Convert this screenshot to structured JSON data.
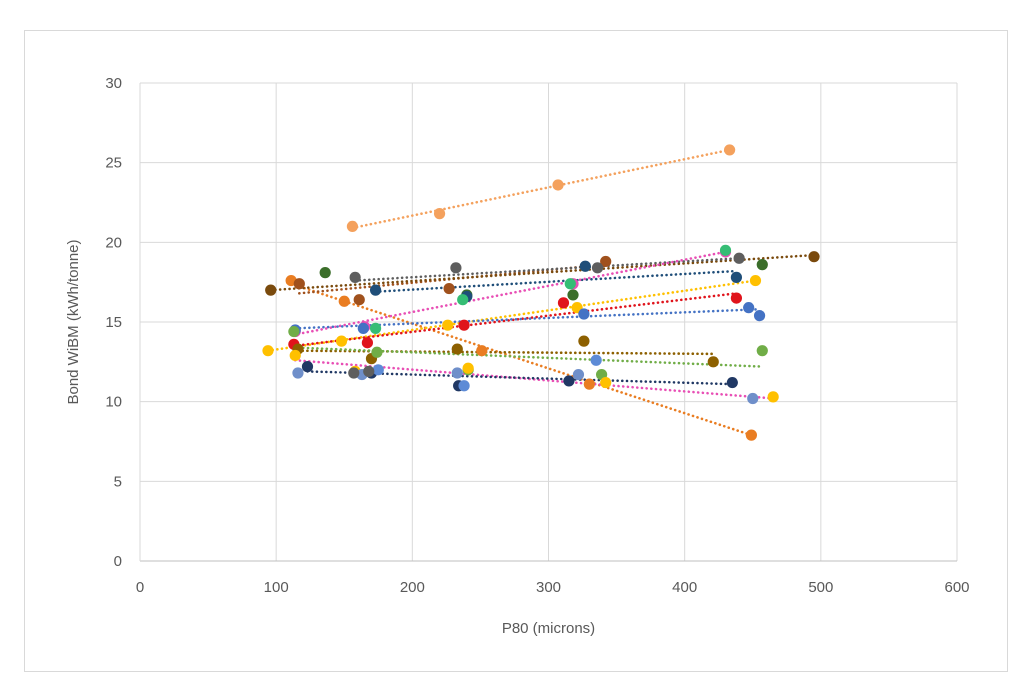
{
  "chart_data": {
    "type": "scatter",
    "title": "",
    "xlabel": "P80 (microns)",
    "ylabel": "Bond WiBM (kWh/tonne)",
    "xlim": [
      0,
      600
    ],
    "ylim": [
      0,
      30
    ],
    "x_ticks": [
      0,
      100,
      200,
      300,
      400,
      500,
      600
    ],
    "y_ticks": [
      0,
      5,
      10,
      15,
      20,
      25,
      30
    ],
    "grid": true,
    "legend": "none",
    "trendline_style": "dotted linear",
    "series": [
      {
        "color": "#f4a15d",
        "points": [
          [
            156,
            21.0
          ],
          [
            220,
            21.8
          ],
          [
            307,
            23.6
          ],
          [
            433,
            25.8
          ]
        ]
      },
      {
        "color": "#e97d22",
        "points": [
          [
            111,
            17.6
          ],
          [
            150,
            16.3
          ],
          [
            251,
            13.2
          ],
          [
            330,
            11.1
          ],
          [
            449,
            7.9
          ]
        ]
      },
      {
        "color": "#a0511d",
        "points": [
          [
            117,
            17.4
          ],
          [
            161,
            16.4
          ],
          [
            227,
            17.1
          ],
          [
            342,
            18.8
          ]
        ]
      },
      {
        "color": "#7a4a0d",
        "points": [
          [
            96,
            17.0
          ],
          [
            495,
            19.1
          ]
        ]
      },
      {
        "color": "#5e5e5e",
        "points": [
          [
            158,
            17.8
          ],
          [
            232,
            18.4
          ],
          [
            336,
            18.4
          ],
          [
            440,
            19.0
          ]
        ]
      },
      {
        "color": "#3b6e2a",
        "points": [
          [
            136,
            18.1
          ],
          [
            240,
            16.7
          ],
          [
            318,
            16.7
          ],
          [
            457,
            18.6
          ]
        ]
      },
      {
        "color": "#1f4e79",
        "points": [
          [
            173,
            17.0
          ],
          [
            240,
            16.6
          ],
          [
            327,
            18.5
          ],
          [
            438,
            17.8
          ]
        ]
      },
      {
        "color": "#e84fb5",
        "points": [
          [
            114,
            14.4
          ],
          [
            165,
            14.7
          ],
          [
            318,
            17.4
          ],
          [
            430,
            19.4
          ]
        ]
      },
      {
        "color": "#35bd74",
        "points": [
          [
            173,
            14.6
          ],
          [
            237,
            16.4
          ],
          [
            316,
            17.4
          ],
          [
            430,
            19.5
          ]
        ]
      },
      {
        "color": "#ffc000",
        "points": [
          [
            94,
            13.2
          ],
          [
            148,
            13.8
          ],
          [
            226,
            14.8
          ],
          [
            321,
            15.9
          ],
          [
            452,
            17.6
          ]
        ]
      },
      {
        "color": "#e0141c",
        "points": [
          [
            113,
            13.6
          ],
          [
            167,
            13.7
          ],
          [
            238,
            14.8
          ],
          [
            311,
            16.2
          ],
          [
            438,
            16.5
          ]
        ]
      },
      {
        "color": "#4472c4",
        "points": [
          [
            114,
            14.5
          ],
          [
            164,
            14.6
          ],
          [
            326,
            15.5
          ],
          [
            447,
            15.9
          ],
          [
            455,
            15.4
          ]
        ]
      },
      {
        "color": "#8d6000",
        "points": [
          [
            116,
            13.3
          ],
          [
            170,
            12.7
          ],
          [
            233,
            13.3
          ],
          [
            326,
            13.8
          ],
          [
            421,
            12.5
          ]
        ]
      },
      {
        "color": "#70ad47",
        "points": [
          [
            113,
            14.4
          ],
          [
            174,
            13.1
          ],
          [
            241,
            12.0
          ],
          [
            339,
            11.7
          ],
          [
            457,
            13.2
          ]
        ]
      },
      {
        "color": "#ffc000",
        "points": [
          [
            114,
            12.9
          ],
          [
            158,
            11.9
          ],
          [
            241,
            12.1
          ],
          [
            342,
            11.2
          ],
          [
            465,
            10.3
          ]
        ]
      },
      {
        "color": "#6f8fca",
        "points": [
          [
            116,
            11.8
          ],
          [
            163,
            11.7
          ],
          [
            233,
            11.8
          ],
          [
            322,
            11.7
          ],
          [
            450,
            10.2
          ]
        ]
      },
      {
        "color": "#203864",
        "points": [
          [
            123,
            12.2
          ],
          [
            170,
            11.8
          ],
          [
            234,
            11.0
          ],
          [
            315,
            11.3
          ],
          [
            435,
            11.2
          ]
        ]
      },
      {
        "color": "#5d8bd6",
        "points": [
          [
            175,
            12.0
          ],
          [
            238,
            11.0
          ],
          [
            335,
            12.6
          ]
        ]
      },
      {
        "color": "#5e5e5e",
        "points": [
          [
            157,
            11.8
          ],
          [
            168,
            11.9
          ]
        ]
      }
    ],
    "trendlines": [
      {
        "color": "#f4a15d",
        "from": [
          156,
          20.9
        ],
        "to": [
          433,
          25.8
        ]
      },
      {
        "color": "#e97d22",
        "from": [
          111,
          17.4
        ],
        "to": [
          449,
          7.9
        ]
      },
      {
        "color": "#a0511d",
        "from": [
          117,
          16.8
        ],
        "to": [
          342,
          18.6
        ]
      },
      {
        "color": "#7a4a0d",
        "from": [
          96,
          17.0
        ],
        "to": [
          495,
          19.2
        ]
      },
      {
        "color": "#5e5e5e",
        "from": [
          158,
          17.6
        ],
        "to": [
          440,
          19.0
        ]
      },
      {
        "color": "#1f4e79",
        "from": [
          173,
          16.9
        ],
        "to": [
          438,
          18.2
        ]
      },
      {
        "color": "#e84fb5",
        "from": [
          113,
          14.2
        ],
        "to": [
          430,
          19.4
        ]
      },
      {
        "color": "#ffc000",
        "from": [
          94,
          13.2
        ],
        "to": [
          452,
          17.6
        ]
      },
      {
        "color": "#e0141c",
        "from": [
          113,
          13.5
        ],
        "to": [
          438,
          16.8
        ]
      },
      {
        "color": "#4472c4",
        "from": [
          114,
          14.6
        ],
        "to": [
          455,
          15.8
        ]
      },
      {
        "color": "#8d6000",
        "from": [
          116,
          13.2
        ],
        "to": [
          421,
          13.0
        ]
      },
      {
        "color": "#70ad47",
        "from": [
          113,
          13.4
        ],
        "to": [
          457,
          12.2
        ]
      },
      {
        "color": "#e84fb5",
        "from": [
          114,
          12.6
        ],
        "to": [
          465,
          10.2
        ]
      },
      {
        "color": "#203864",
        "from": [
          123,
          11.9
        ],
        "to": [
          435,
          11.1
        ]
      }
    ]
  }
}
